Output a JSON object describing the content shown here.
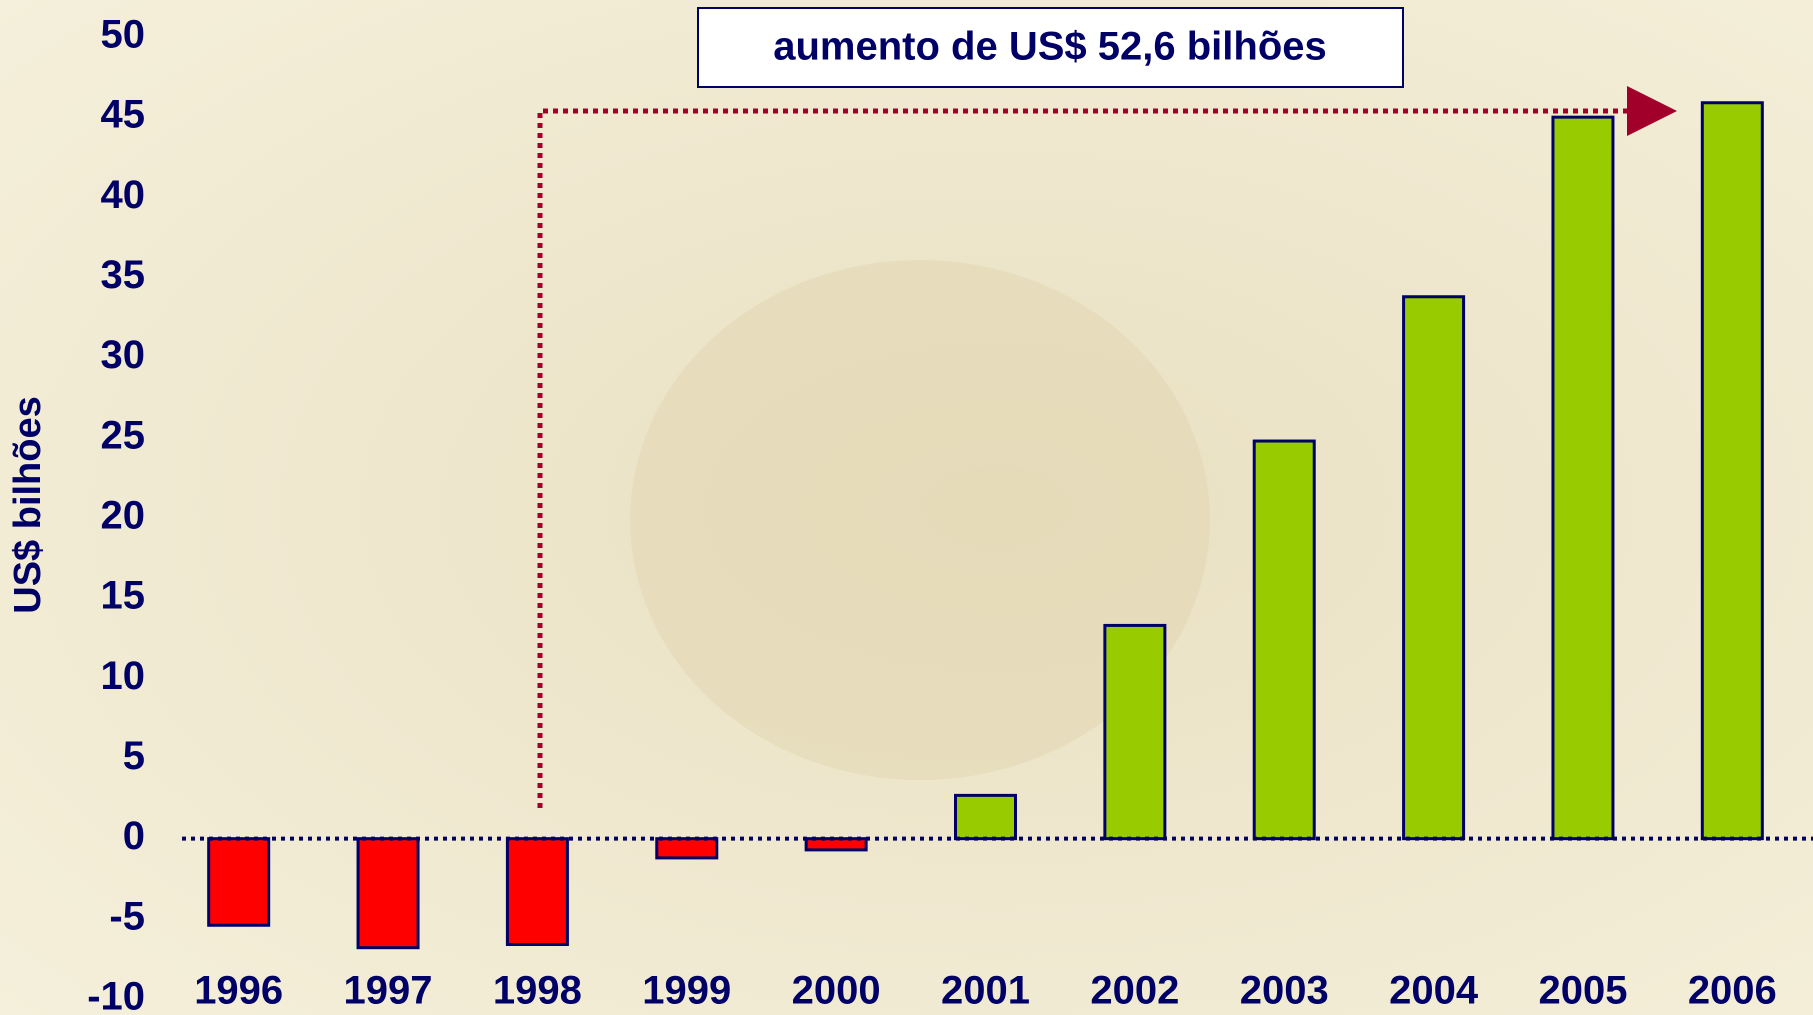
{
  "chart_data": {
    "type": "bar",
    "y_label": "US$ bilhões",
    "annotation": "aumento de US$ 52,6 bilhões",
    "categories": [
      "1996",
      "1997",
      "1998",
      "1999",
      "2000",
      "2001",
      "2002",
      "2003",
      "2004",
      "2005",
      "2006"
    ],
    "values": [
      -5.4,
      -6.8,
      -6.6,
      -1.2,
      -0.7,
      2.7,
      13.3,
      24.8,
      33.8,
      45.0,
      45.9
    ],
    "positive_color": "#99cc00",
    "negative_color": "#ff0000",
    "edge_color": "#000066",
    "ylim": [
      -10,
      50
    ],
    "yticks": [
      -10,
      -5,
      0,
      5,
      10,
      15,
      20,
      25,
      30,
      35,
      40,
      45,
      50
    ]
  }
}
